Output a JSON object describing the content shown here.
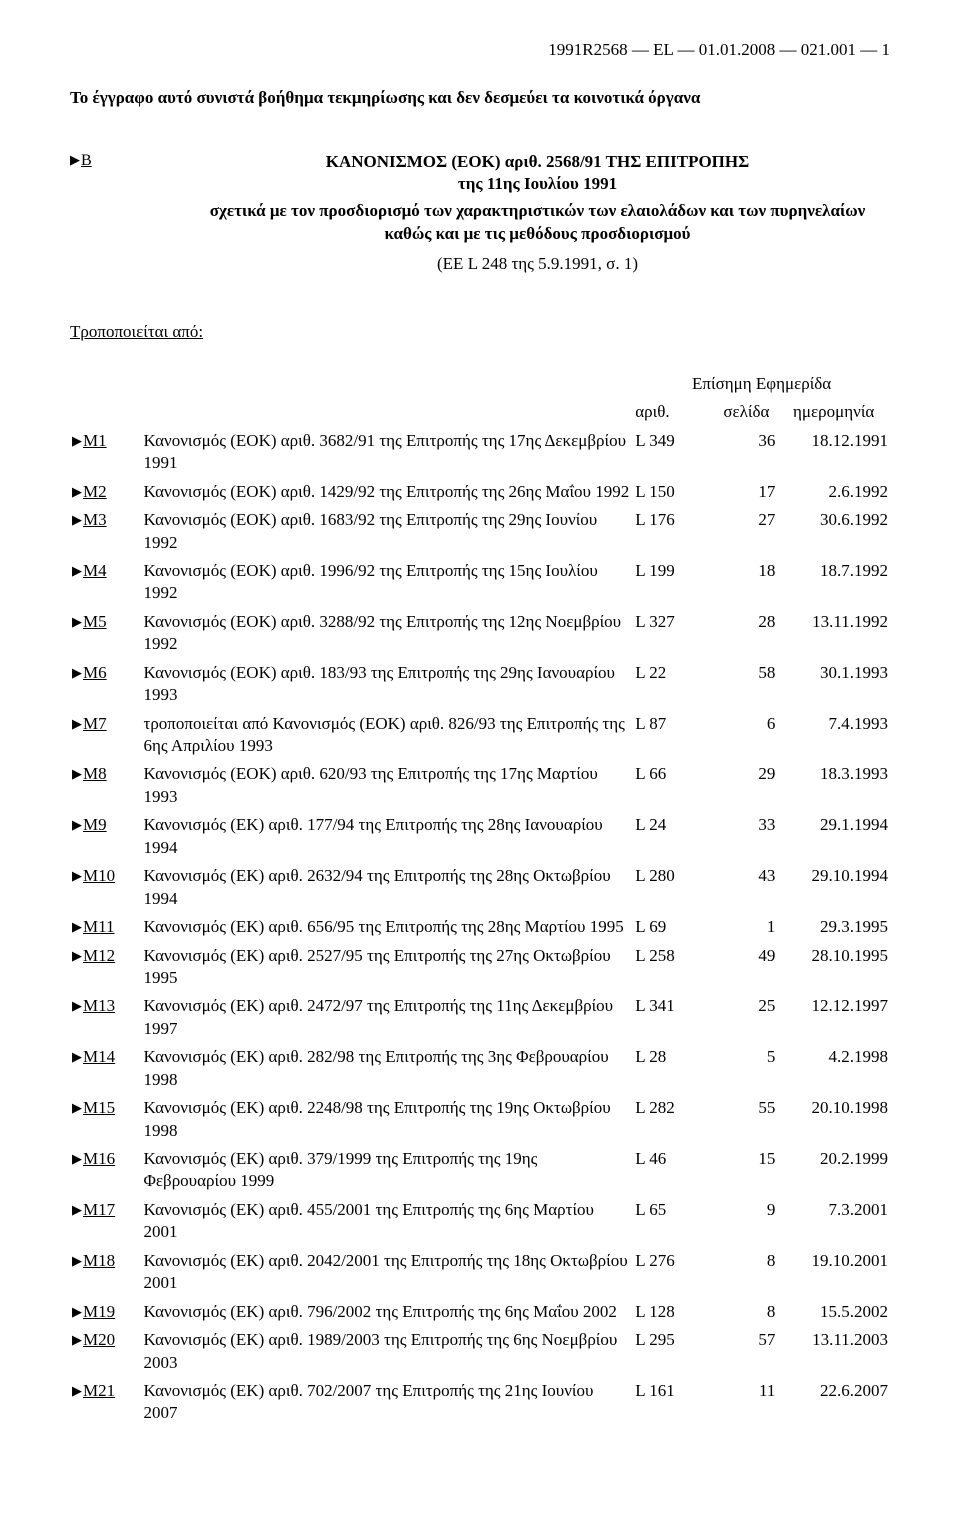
{
  "header_ref": "1991R2568 — EL — 01.01.2008 — 021.001 — 1",
  "disclaimer": "Το έγγραφο αυτό συνιστά βοήθημα τεκμηρίωσης και δεν δεσμεύει τα κοινοτικά όργανα",
  "b_marker": "B",
  "reg_title": "ΚΑΝΟΝΙΣΜΟΣ (ΕΟΚ) αριθ. 2568/91 ΤΗΣ ΕΠΙΤΡΟΠΗΣ",
  "reg_subtitle": "της 11ης Ιουλίου 1991",
  "reg_desc": "σχετικά με τον προσδιορισμό των χαρακτηριστικών των ελαιολάδων και των πυρηνελαίων καθώς και με τις μεθόδους προσδιορισμού",
  "reg_ref": "(ΕΕ L 248 της 5.9.1991, σ. 1)",
  "amended_by": "Τροποποιείται από:",
  "oj_header": "Επίσημη Εφημερίδα",
  "col_arith": "αριθ.",
  "col_page": "σελίδα",
  "col_date": "ημερομηνία",
  "rows": [
    {
      "m": "M1",
      "desc": "Κανονισμός (ΕΟΚ) αριθ. 3682/91 της Επιτροπής της 17ης Δεκεμβρίου 1991",
      "arith": "L 349",
      "page": "36",
      "date": "18.12.1991"
    },
    {
      "m": "M2",
      "desc": "Κανονισμός (ΕΟΚ) αριθ. 1429/92 της Επιτροπής της 26ης Μαΐου 1992",
      "arith": "L 150",
      "page": "17",
      "date": "2.6.1992"
    },
    {
      "m": "M3",
      "desc": "Κανονισμός (ΕΟΚ) αριθ. 1683/92 της Επιτροπής της 29ης Ιουνίου 1992",
      "arith": "L 176",
      "page": "27",
      "date": "30.6.1992"
    },
    {
      "m": "M4",
      "desc": "Κανονισμός (ΕΟΚ) αριθ. 1996/92 της Επιτροπής της 15ης Ιουλίου 1992",
      "arith": "L 199",
      "page": "18",
      "date": "18.7.1992"
    },
    {
      "m": "M5",
      "desc": "Κανονισμός (ΕΟΚ) αριθ. 3288/92 της Επιτροπής της 12ης Νοεμβρίου 1992",
      "arith": "L 327",
      "page": "28",
      "date": "13.11.1992"
    },
    {
      "m": "M6",
      "desc": "Κανονισμός (ΕΟΚ) αριθ. 183/93 της Επιτροπής της 29ης Ιανουαρίου 1993",
      "arith": "L 22",
      "page": "58",
      "date": "30.1.1993"
    },
    {
      "m": "M7",
      "desc": "τροποποιείται από Κανονισμός (ΕΟΚ) αριθ. 826/93 της Επιτροπής της 6ης Απριλίου 1993",
      "arith": "L 87",
      "page": "6",
      "date": "7.4.1993"
    },
    {
      "m": "M8",
      "desc": "Κανονισμός (ΕΟΚ) αριθ. 620/93 της Επιτροπής της 17ης Μαρτίου 1993",
      "arith": "L 66",
      "page": "29",
      "date": "18.3.1993"
    },
    {
      "m": "M9",
      "desc": "Κανονισμός (ΕΚ) αριθ. 177/94 της Επιτροπής της 28ης Ιανουαρίου 1994",
      "arith": "L 24",
      "page": "33",
      "date": "29.1.1994"
    },
    {
      "m": "M10",
      "desc": "Κανονισμός (ΕΚ) αριθ. 2632/94 της Επιτροπής της 28ης Οκτωβρίου 1994",
      "arith": "L 280",
      "page": "43",
      "date": "29.10.1994"
    },
    {
      "m": "M11",
      "desc": "Κανονισμός (ΕΚ) αριθ. 656/95 της Επιτροπής της 28ης Μαρτίου 1995",
      "arith": "L 69",
      "page": "1",
      "date": "29.3.1995"
    },
    {
      "m": "M12",
      "desc": "Κανονισμός (ΕΚ) αριθ. 2527/95 της Επιτροπής της 27ης Οκτωβρίου 1995",
      "arith": "L 258",
      "page": "49",
      "date": "28.10.1995"
    },
    {
      "m": "M13",
      "desc": "Κανονισμός (ΕΚ) αριθ. 2472/97 της Επιτροπής της 11ης Δεκεμβρίου 1997",
      "arith": "L 341",
      "page": "25",
      "date": "12.12.1997"
    },
    {
      "m": "M14",
      "desc": "Κανονισμός (ΕΚ) αριθ. 282/98 της Επιτροπής της 3ης Φεβρουαρίου 1998",
      "arith": "L 28",
      "page": "5",
      "date": "4.2.1998"
    },
    {
      "m": "M15",
      "desc": "Κανονισμός (ΕΚ) αριθ. 2248/98 της Επιτροπής της 19ης Οκτωβρίου 1998",
      "arith": "L 282",
      "page": "55",
      "date": "20.10.1998"
    },
    {
      "m": "M16",
      "desc": "Κανονισμός (ΕΚ) αριθ. 379/1999 της Επιτροπής της 19ης Φεβρουαρίου 1999",
      "arith": "L 46",
      "page": "15",
      "date": "20.2.1999"
    },
    {
      "m": "M17",
      "desc": "Κανονισμός (ΕΚ) αριθ. 455/2001 της Επιτροπής της 6ης Μαρτίου 2001",
      "arith": "L 65",
      "page": "9",
      "date": "7.3.2001"
    },
    {
      "m": "M18",
      "desc": "Κανονισμός (ΕΚ) αριθ. 2042/2001 της Επιτροπής της 18ης Οκτωβρίου 2001",
      "arith": "L 276",
      "page": "8",
      "date": "19.10.2001"
    },
    {
      "m": "M19",
      "desc": "Κανονισμός (ΕΚ) αριθ. 796/2002 της Επιτροπής της 6ης Μαΐου 2002",
      "arith": "L 128",
      "page": "8",
      "date": "15.5.2002"
    },
    {
      "m": "M20",
      "desc": "Κανονισμός (ΕΚ) αριθ. 1989/2003 της Επιτροπής της 6ης Νοεμβρίου 2003",
      "arith": "L 295",
      "page": "57",
      "date": "13.11.2003"
    },
    {
      "m": "M21",
      "desc": "Κανονισμός (ΕΚ) αριθ. 702/2007 της Επιτροπής της 21ης Ιουνίου 2007",
      "arith": "L 161",
      "page": "11",
      "date": "22.6.2007"
    }
  ]
}
